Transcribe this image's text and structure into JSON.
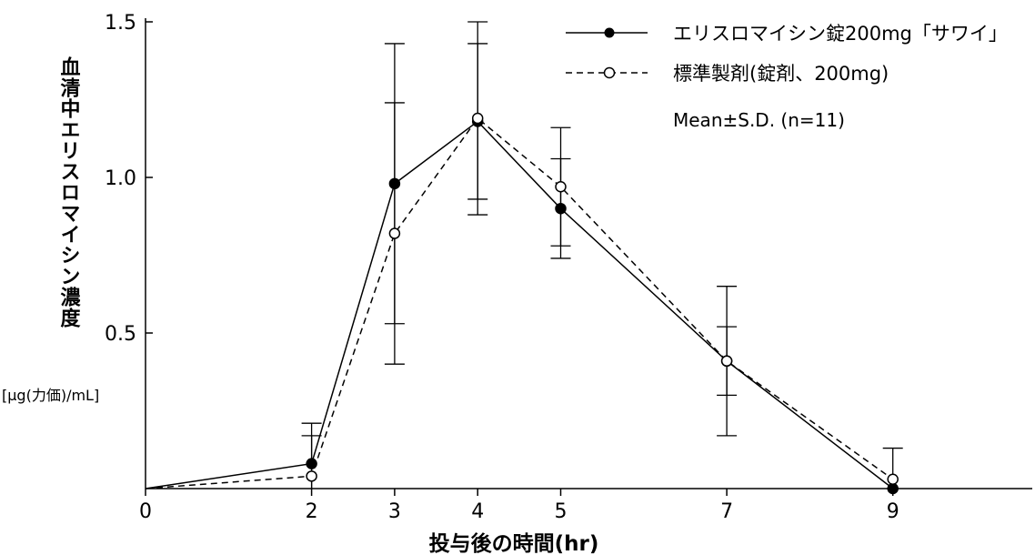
{
  "chart_data": {
    "type": "line",
    "xlabel": "投与後の時間(hr)",
    "ylabel": "血清中エリスロマイシン濃度",
    "ylabel_unit": "[μg(力価)/mL]",
    "xlim": [
      0,
      11
    ],
    "ylim": [
      0,
      1.5
    ],
    "x_ticks": [
      0,
      2,
      3,
      4,
      5,
      7,
      9
    ],
    "y_ticks": [
      0.5,
      1.0,
      1.5
    ],
    "y_tick_labels": [
      "0.5",
      "1.0",
      "1.5"
    ],
    "grid": false,
    "legend_position": "top-right",
    "annotation": "Mean±S.D. (n=11)",
    "series": [
      {
        "name": "エリスロマイシン錠200mg「サワイ」",
        "marker": "filled-circle",
        "line_style": "solid",
        "x": [
          0,
          2,
          3,
          4,
          5,
          7,
          9
        ],
        "y": [
          0,
          0.08,
          0.98,
          1.18,
          0.9,
          0.41,
          0
        ],
        "sd": [
          0,
          0.13,
          0.45,
          0.25,
          0.16,
          0.24,
          0
        ]
      },
      {
        "name": "標準製剤(錠剤、200mg)",
        "marker": "open-circle",
        "line_style": "dashed",
        "x": [
          0,
          2,
          3,
          4,
          5,
          7,
          9
        ],
        "y": [
          0,
          0.04,
          0.82,
          1.19,
          0.97,
          0.41,
          0.03
        ],
        "sd": [
          0,
          0.13,
          0.42,
          0.31,
          0.19,
          0.11,
          0.1
        ]
      }
    ]
  }
}
